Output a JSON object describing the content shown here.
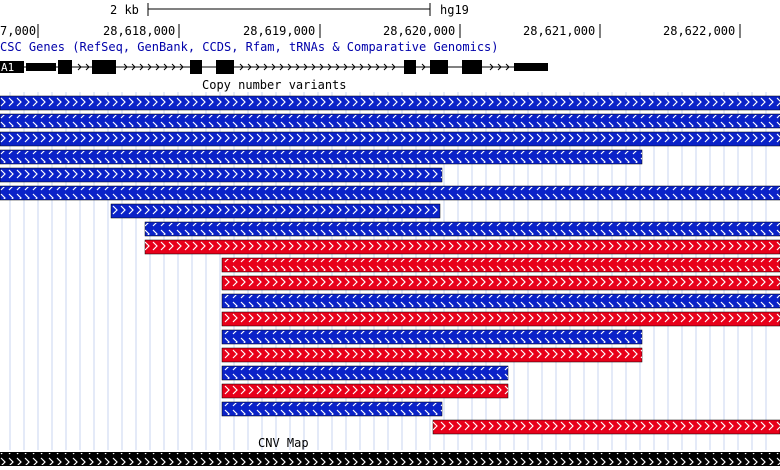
{
  "scale": {
    "label": "2 kb",
    "assembly": "hg19"
  },
  "ruler": {
    "ticks": [
      "7,000",
      "28,618,000",
      "28,619,000",
      "28,620,000",
      "28,621,000",
      "28,622,000"
    ]
  },
  "genes_track": {
    "title": "CSC Genes (RefSeq, GenBank, CCDS, Rfam, tRNAs & Comparative Genomics)",
    "gene_label": "A1"
  },
  "cnv_track": {
    "title": "Copy number variants",
    "items": [
      {
        "color": "blue"
      },
      {
        "color": "blue"
      },
      {
        "color": "blue"
      },
      {
        "color": "blue"
      },
      {
        "color": "blue"
      },
      {
        "color": "blue"
      },
      {
        "color": "blue"
      },
      {
        "color": "blue"
      },
      {
        "color": "red"
      },
      {
        "color": "red"
      },
      {
        "color": "red"
      },
      {
        "color": "blue"
      },
      {
        "color": "red"
      },
      {
        "color": "blue"
      },
      {
        "color": "red"
      },
      {
        "color": "blue"
      },
      {
        "color": "red"
      },
      {
        "color": "blue"
      },
      {
        "color": "red"
      }
    ]
  },
  "cnv_map_track": {
    "title": "CNV Map"
  },
  "colors": {
    "blue": "#0a22c8",
    "red": "#e8001a",
    "black": "#000000",
    "gridline": "#c8d4f0",
    "label_blue": "#0000aa"
  }
}
